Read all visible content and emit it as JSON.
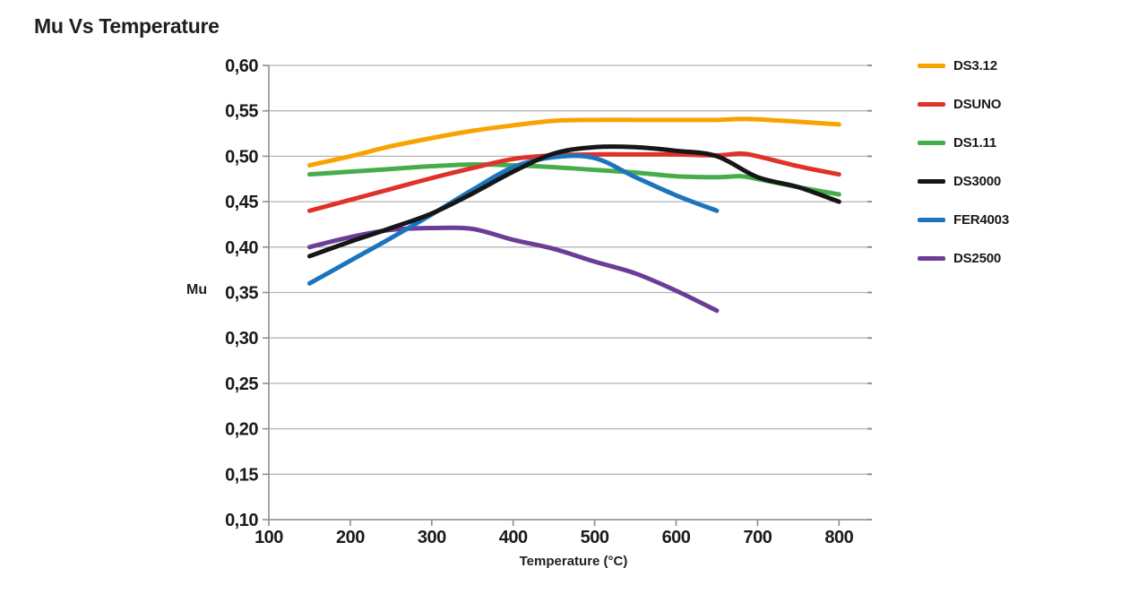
{
  "page": {
    "title": "Mu Vs Temperature"
  },
  "chart_data": {
    "type": "line",
    "title": "Mu Vs Temperature",
    "xlabel": "Temperature (°C)",
    "ylabel": "Mu",
    "xlim": [
      100,
      843
    ],
    "ylim": [
      0.1,
      0.6
    ],
    "grid": "horizontal",
    "legend_position": "right",
    "x_ticks": [
      100,
      200,
      300,
      400,
      500,
      600,
      700,
      800
    ],
    "x_tick_labels": [
      "100",
      "200",
      "300",
      "400",
      "500",
      "600",
      "700",
      "800"
    ],
    "y_ticks": [
      0.1,
      0.15,
      0.2,
      0.25,
      0.3,
      0.35,
      0.4,
      0.45,
      0.5,
      0.55,
      0.6
    ],
    "y_tick_labels": [
      "0,10",
      "0,15",
      "0,20",
      "0,25",
      "0,30",
      "0,35",
      "0,40",
      "0,45",
      "0,50",
      "0,55",
      "0,60"
    ],
    "series": [
      {
        "name": "DS3.12",
        "color": "#F7A400",
        "x": [
          150,
          200,
          250,
          300,
          350,
          400,
          450,
          500,
          550,
          600,
          650,
          690,
          750,
          800
        ],
        "y": [
          0.49,
          0.5,
          0.511,
          0.52,
          0.528,
          0.534,
          0.539,
          0.54,
          0.54,
          0.54,
          0.54,
          0.541,
          0.538,
          0.535
        ]
      },
      {
        "name": "DSUNO",
        "color": "#E0312A",
        "x": [
          150,
          200,
          250,
          300,
          350,
          400,
          450,
          500,
          550,
          600,
          650,
          680,
          700,
          750,
          800
        ],
        "y": [
          0.44,
          0.452,
          0.464,
          0.476,
          0.487,
          0.497,
          0.501,
          0.502,
          0.502,
          0.502,
          0.501,
          0.503,
          0.5,
          0.489,
          0.48
        ]
      },
      {
        "name": "DS1.11",
        "color": "#46AD4A",
        "x": [
          150,
          200,
          250,
          300,
          350,
          400,
          450,
          500,
          550,
          600,
          650,
          680,
          700,
          750,
          800
        ],
        "y": [
          0.48,
          0.483,
          0.486,
          0.489,
          0.491,
          0.49,
          0.488,
          0.485,
          0.482,
          0.478,
          0.477,
          0.478,
          0.475,
          0.466,
          0.458
        ]
      },
      {
        "name": "DS3000",
        "color": "#161616",
        "x": [
          150,
          200,
          250,
          300,
          350,
          400,
          450,
          500,
          550,
          600,
          650,
          700,
          750,
          800
        ],
        "y": [
          0.39,
          0.406,
          0.421,
          0.437,
          0.459,
          0.483,
          0.503,
          0.51,
          0.51,
          0.506,
          0.5,
          0.477,
          0.466,
          0.45
        ]
      },
      {
        "name": "FER4003",
        "color": "#1C75BC",
        "x": [
          150,
          200,
          250,
          300,
          350,
          400,
          450,
          500,
          550,
          600,
          650
        ],
        "y": [
          0.36,
          0.385,
          0.41,
          0.436,
          0.463,
          0.488,
          0.499,
          0.498,
          0.477,
          0.457,
          0.44
        ]
      },
      {
        "name": "DS2500",
        "color": "#6B3D96",
        "x": [
          150,
          200,
          250,
          300,
          350,
          400,
          450,
          500,
          550,
          600,
          650
        ],
        "y": [
          0.4,
          0.411,
          0.419,
          0.421,
          0.42,
          0.408,
          0.398,
          0.384,
          0.371,
          0.352,
          0.33
        ]
      }
    ]
  }
}
